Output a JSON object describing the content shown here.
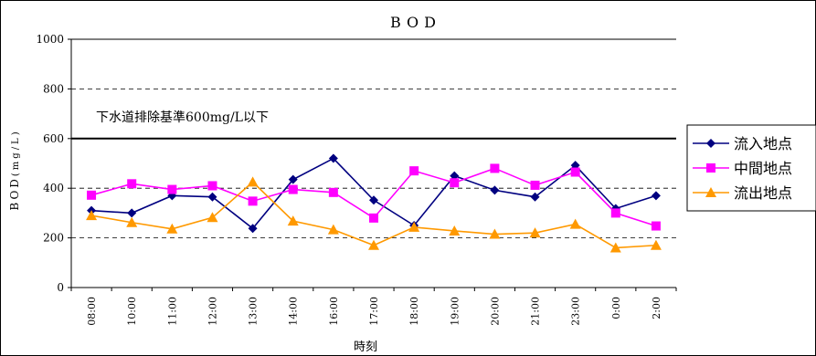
{
  "chart_data": {
    "type": "line",
    "title": "BOD",
    "xlabel": "時刻",
    "ylabel_main": "BOD",
    "ylabel_unit": "(mg/L)",
    "ylim": [
      0,
      1000
    ],
    "y_ticks": [
      "0",
      "200",
      "400",
      "600",
      "800",
      "1000"
    ],
    "y_tick_values": [
      0,
      200,
      400,
      600,
      800,
      1000
    ],
    "grid": "dashed horizontal at 200, 400, 800",
    "reference_value": 600,
    "annotation": "下水道排除基準600mg/L以下",
    "categories": [
      "08:00",
      "10:00",
      "11:00",
      "12:00",
      "13:00",
      "14:00",
      "16:00",
      "17:00",
      "18:00",
      "19:00",
      "20:00",
      "21:00",
      "23:00",
      "0:00",
      "2:00"
    ],
    "legend_position": "right",
    "series": [
      {
        "name": "流入地点",
        "color": "#000080",
        "marker": "diamond",
        "values": [
          310,
          300,
          370,
          365,
          238,
          435,
          520,
          352,
          250,
          450,
          392,
          365,
          492,
          318,
          370
        ]
      },
      {
        "name": "中間地点",
        "color": "#FF00FF",
        "marker": "square",
        "values": [
          372,
          418,
          395,
          410,
          348,
          395,
          383,
          280,
          470,
          422,
          480,
          412,
          465,
          300,
          248
        ]
      },
      {
        "name": "流出地点",
        "color": "#FF9900",
        "marker": "triangle",
        "values": [
          290,
          262,
          236,
          282,
          425,
          268,
          233,
          170,
          243,
          228,
          215,
          220,
          255,
          160,
          170
        ]
      }
    ]
  }
}
